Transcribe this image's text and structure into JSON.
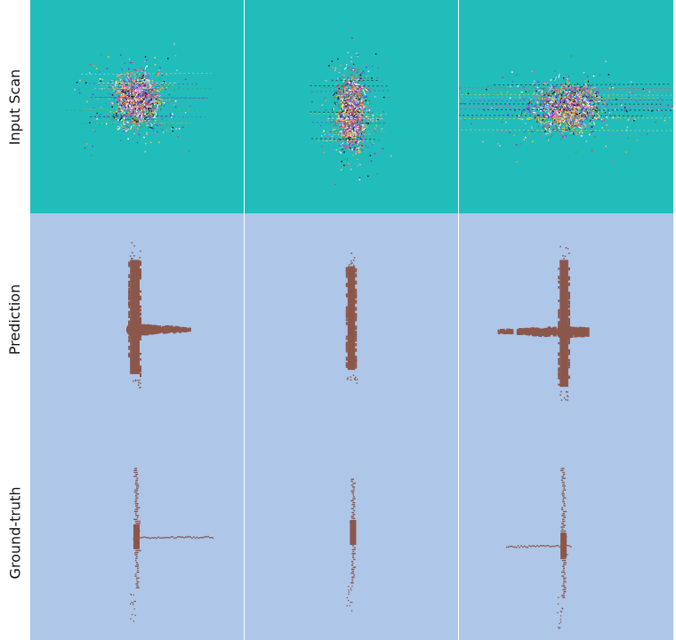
{
  "rows": [
    {
      "label": "Input Scan",
      "kind": "scan"
    },
    {
      "label": "Prediction",
      "kind": "prediction"
    },
    {
      "label": "Ground-truth",
      "kind": "groundtruth"
    }
  ],
  "columns": 3,
  "colors": {
    "scan_background": "#21bdbb",
    "label_background": "#aec6e8",
    "object_brown": "#8c574b",
    "divider": "#ffffff",
    "scan_points": [
      "#e84a4a",
      "#4a6ae8",
      "#3fa24a",
      "#f0d040",
      "#e060c8",
      "#7a3ad0",
      "#ffffff",
      "#ff9a3a",
      "#1a1a1a",
      "#c8c8f0"
    ]
  }
}
